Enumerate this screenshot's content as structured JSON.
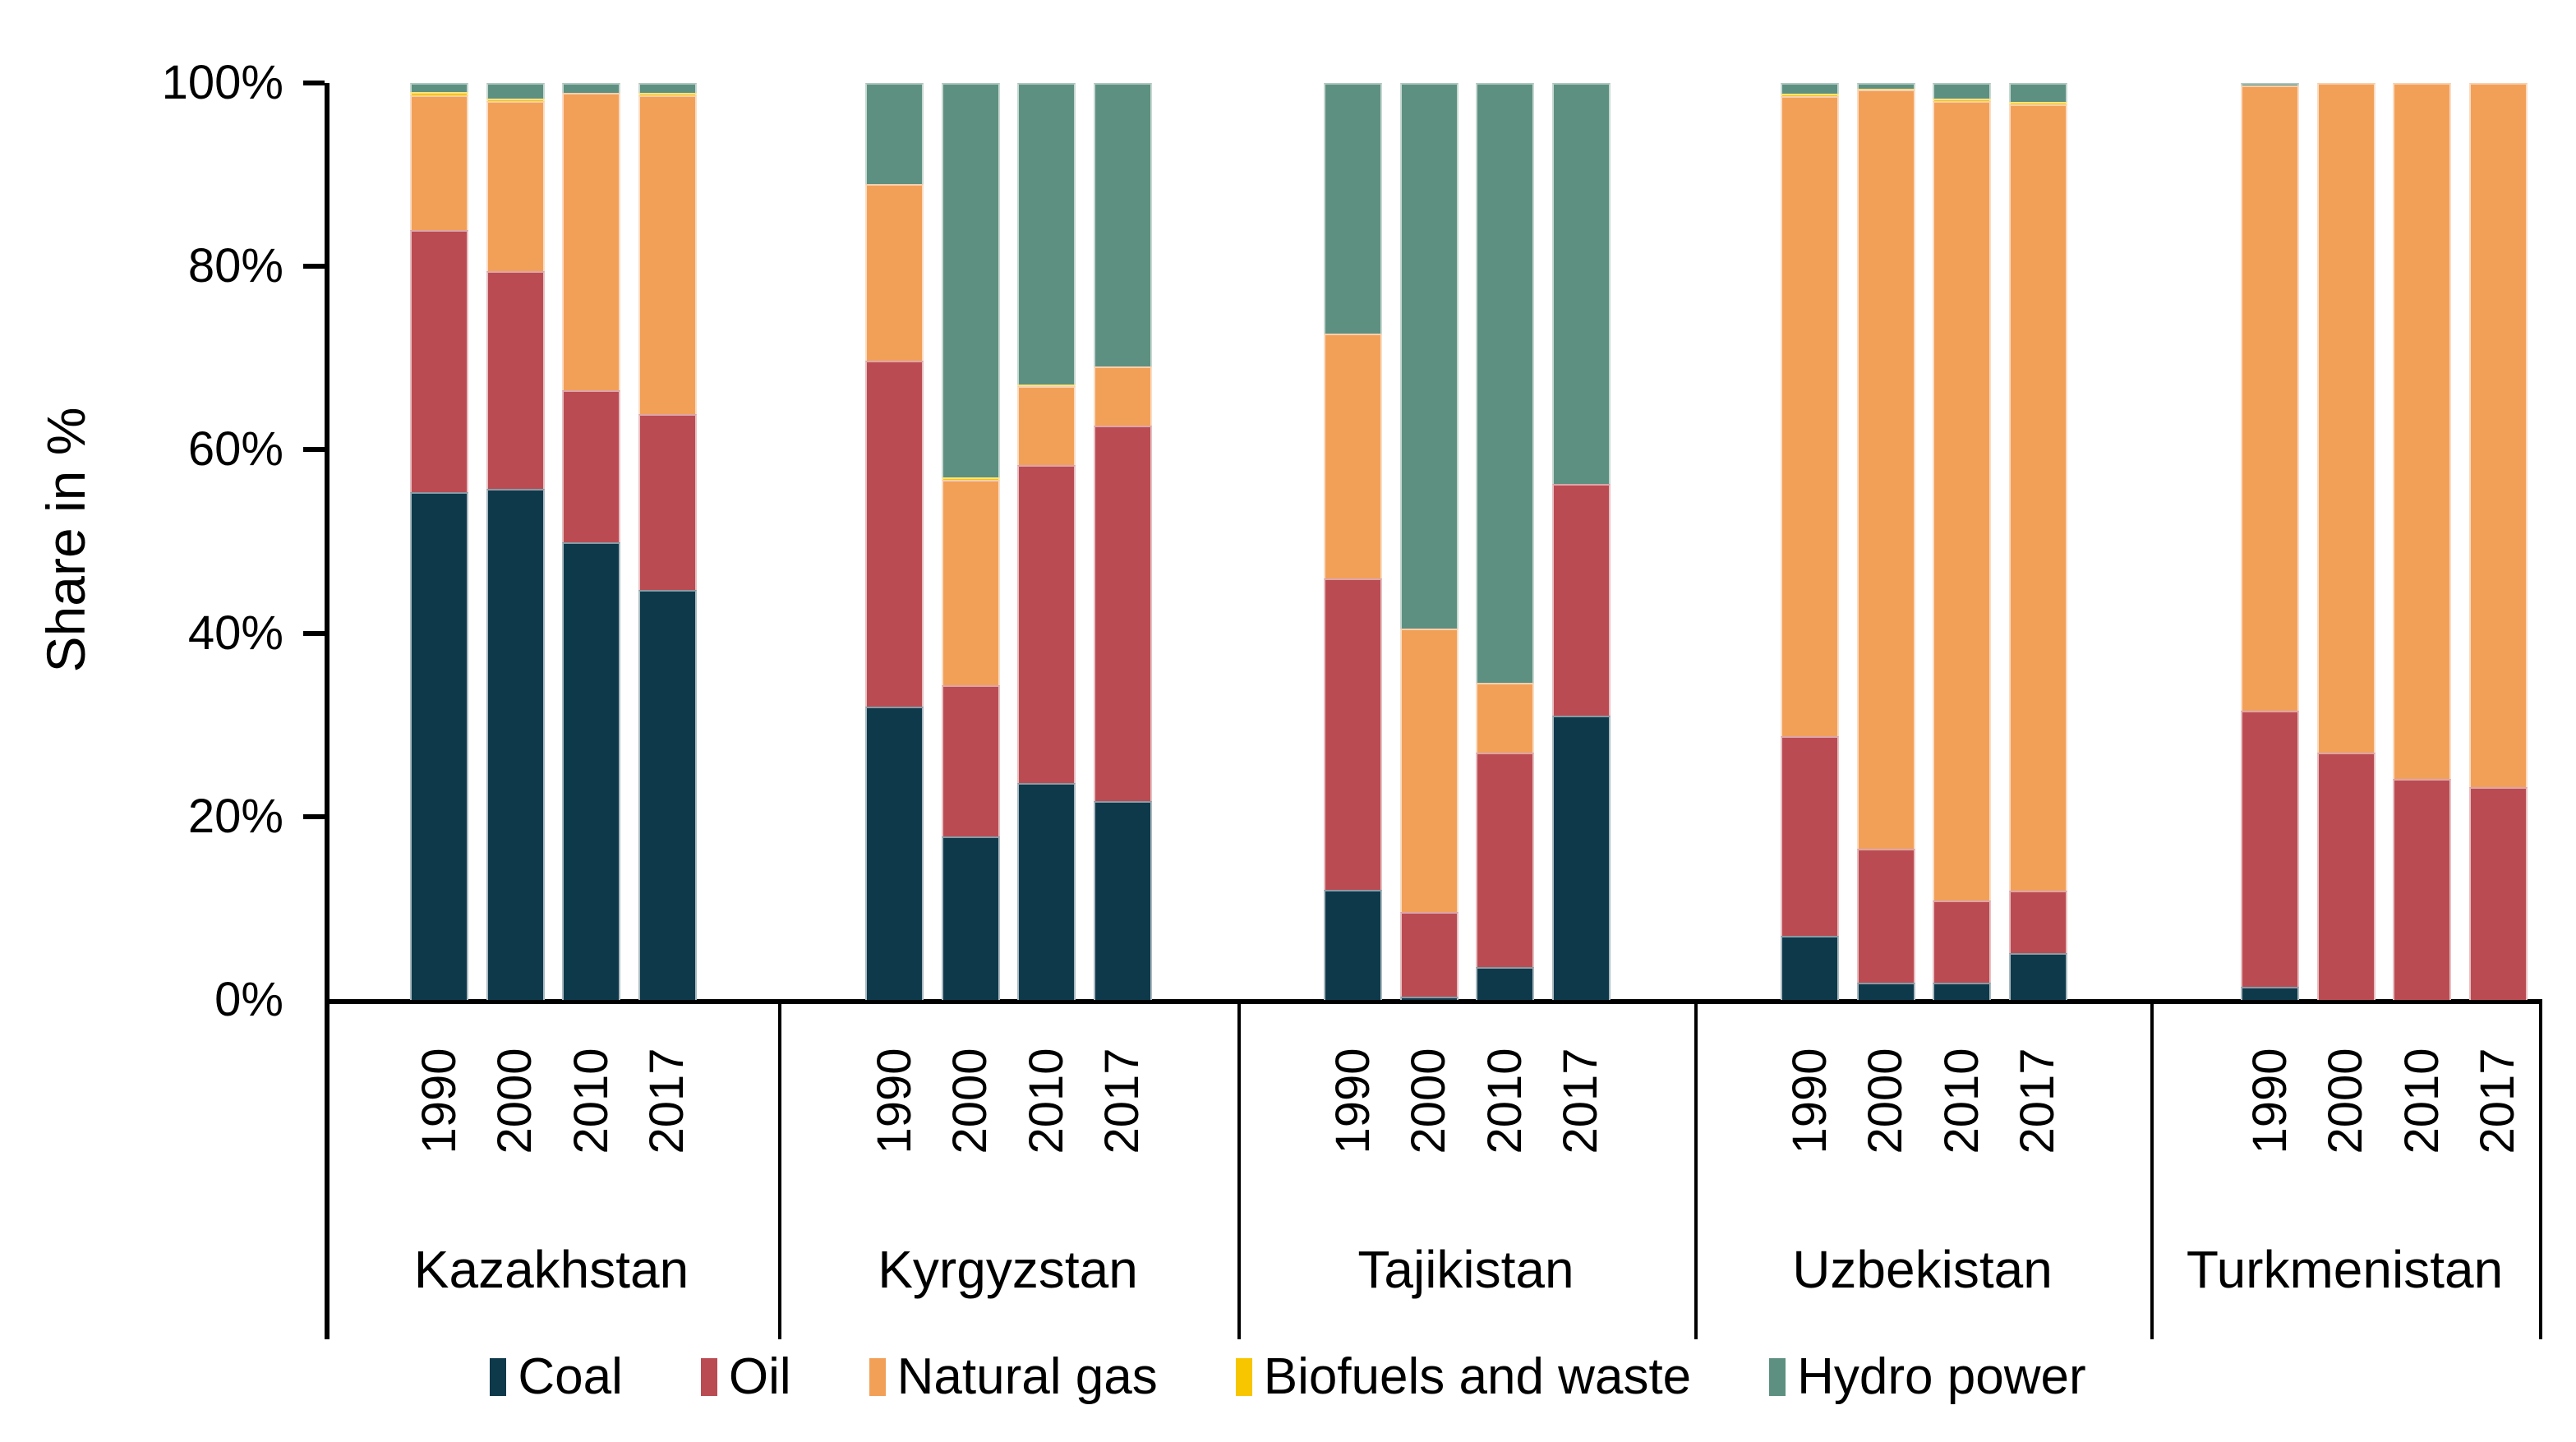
{
  "chart_data": {
    "type": "bar",
    "stacked": true,
    "orientation": "vertical",
    "ylabel": "Share in %",
    "ylim": [
      0,
      100
    ],
    "yticks": [
      {
        "value": 0,
        "label": "0%"
      },
      {
        "value": 20,
        "label": "20%"
      },
      {
        "value": 40,
        "label": "40%"
      },
      {
        "value": 60,
        "label": "60%"
      },
      {
        "value": 80,
        "label": "80%"
      },
      {
        "value": 100,
        "label": "100%"
      }
    ],
    "grid": false,
    "legend_position": "bottom",
    "series_order_bottom_to_top": [
      "Coal",
      "Oil",
      "Natural gas",
      "Biofuels and waste",
      "Hydro power"
    ],
    "series_colors": {
      "Coal": "#0e394b",
      "Oil": "#bb4b52",
      "Natural gas": "#f2a058",
      "Biofuels and waste": "#f7c600",
      "Hydro power": "#5d9080"
    },
    "years": [
      "1990",
      "2000",
      "2010",
      "2017"
    ],
    "groups": [
      {
        "country": "Kazakhstan",
        "values": {
          "Coal": [
            55.4,
            55.7,
            49.9,
            44.7
          ],
          "Oil": [
            28.6,
            23.8,
            16.6,
            19.2
          ],
          "Natural gas": [
            14.7,
            18.5,
            32.4,
            34.8
          ],
          "Biofuels and waste": [
            0.3,
            0.3,
            0.0,
            0.2
          ],
          "Hydro power": [
            1.0,
            1.7,
            1.1,
            1.1
          ]
        }
      },
      {
        "country": "Kyrgyzstan",
        "values": {
          "Coal": [
            32.0,
            17.8,
            23.7,
            21.7
          ],
          "Oil": [
            37.7,
            16.5,
            34.6,
            40.9
          ],
          "Natural gas": [
            19.3,
            22.4,
            8.6,
            6.5
          ],
          "Biofuels and waste": [
            0.0,
            0.3,
            0.2,
            0.0
          ],
          "Hydro power": [
            11.0,
            43.0,
            32.9,
            30.9
          ]
        }
      },
      {
        "country": "Tajikistan",
        "values": {
          "Coal": [
            12.0,
            0.4,
            3.6,
            31.0
          ],
          "Oil": [
            34.0,
            9.2,
            23.4,
            25.3
          ],
          "Natural gas": [
            26.7,
            30.9,
            7.6,
            0.0
          ],
          "Biofuels and waste": [
            0.0,
            0.0,
            0.0,
            0.0
          ],
          "Hydro power": [
            27.3,
            59.5,
            65.4,
            43.7
          ]
        }
      },
      {
        "country": "Uzbekistan",
        "values": {
          "Coal": [
            7.0,
            1.9,
            1.9,
            5.1
          ],
          "Oil": [
            21.8,
            14.6,
            8.9,
            6.8
          ],
          "Natural gas": [
            69.8,
            82.8,
            87.2,
            85.8
          ],
          "Biofuels and waste": [
            0.2,
            0.1,
            0.3,
            0.2
          ],
          "Hydro power": [
            1.2,
            0.6,
            1.7,
            2.1
          ]
        }
      },
      {
        "country": "Turkmenistan",
        "values": {
          "Coal": [
            1.4,
            0.0,
            0.0,
            0.0
          ],
          "Oil": [
            30.1,
            27.0,
            24.1,
            23.2
          ],
          "Natural gas": [
            68.2,
            73.0,
            75.9,
            76.8
          ],
          "Biofuels and waste": [
            0.0,
            0.0,
            0.0,
            0.0
          ],
          "Hydro power": [
            0.3,
            0.0,
            0.0,
            0.0
          ]
        }
      }
    ]
  },
  "legend": {
    "items": [
      {
        "label": "Coal",
        "color": "#0e394b"
      },
      {
        "label": "Oil",
        "color": "#bb4b52"
      },
      {
        "label": "Natural gas",
        "color": "#f2a058"
      },
      {
        "label": "Biofuels and waste",
        "color": "#f7c600"
      },
      {
        "label": "Hydro power",
        "color": "#5d9080"
      }
    ]
  },
  "axis": {
    "ylabel": "Share in %"
  }
}
